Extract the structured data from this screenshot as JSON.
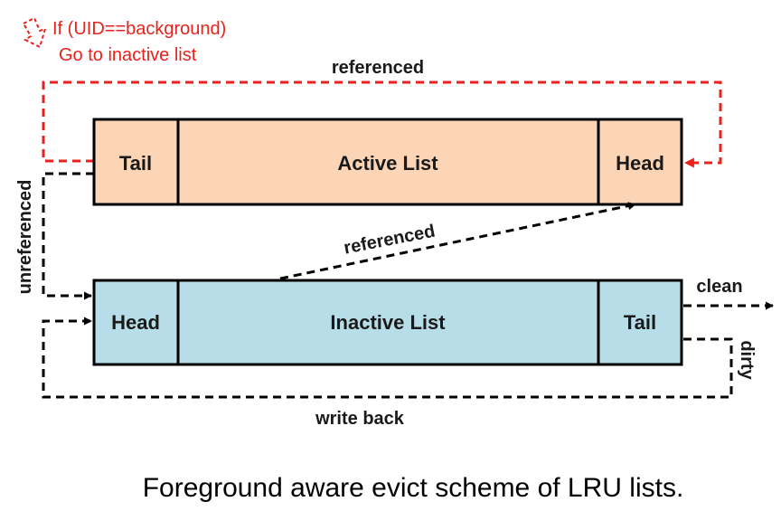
{
  "note": {
    "line1": "If (UID==background)",
    "line2": "Go to inactive list",
    "color": "#e8221c"
  },
  "active_list": {
    "left_cell": "Tail",
    "middle_cell": "Active List",
    "right_cell": "Head",
    "fill": "#fbd5b5"
  },
  "inactive_list": {
    "left_cell": "Head",
    "middle_cell": "Inactive List",
    "right_cell": "Tail",
    "fill": "#b7dde8"
  },
  "edges": {
    "top_referenced": "referenced",
    "diagonal_referenced": "referenced",
    "unreferenced": "unreferenced",
    "clean": "clean",
    "dirty": "dirty",
    "write_back": "write back"
  },
  "caption": "Foreground aware evict scheme of LRU lists."
}
